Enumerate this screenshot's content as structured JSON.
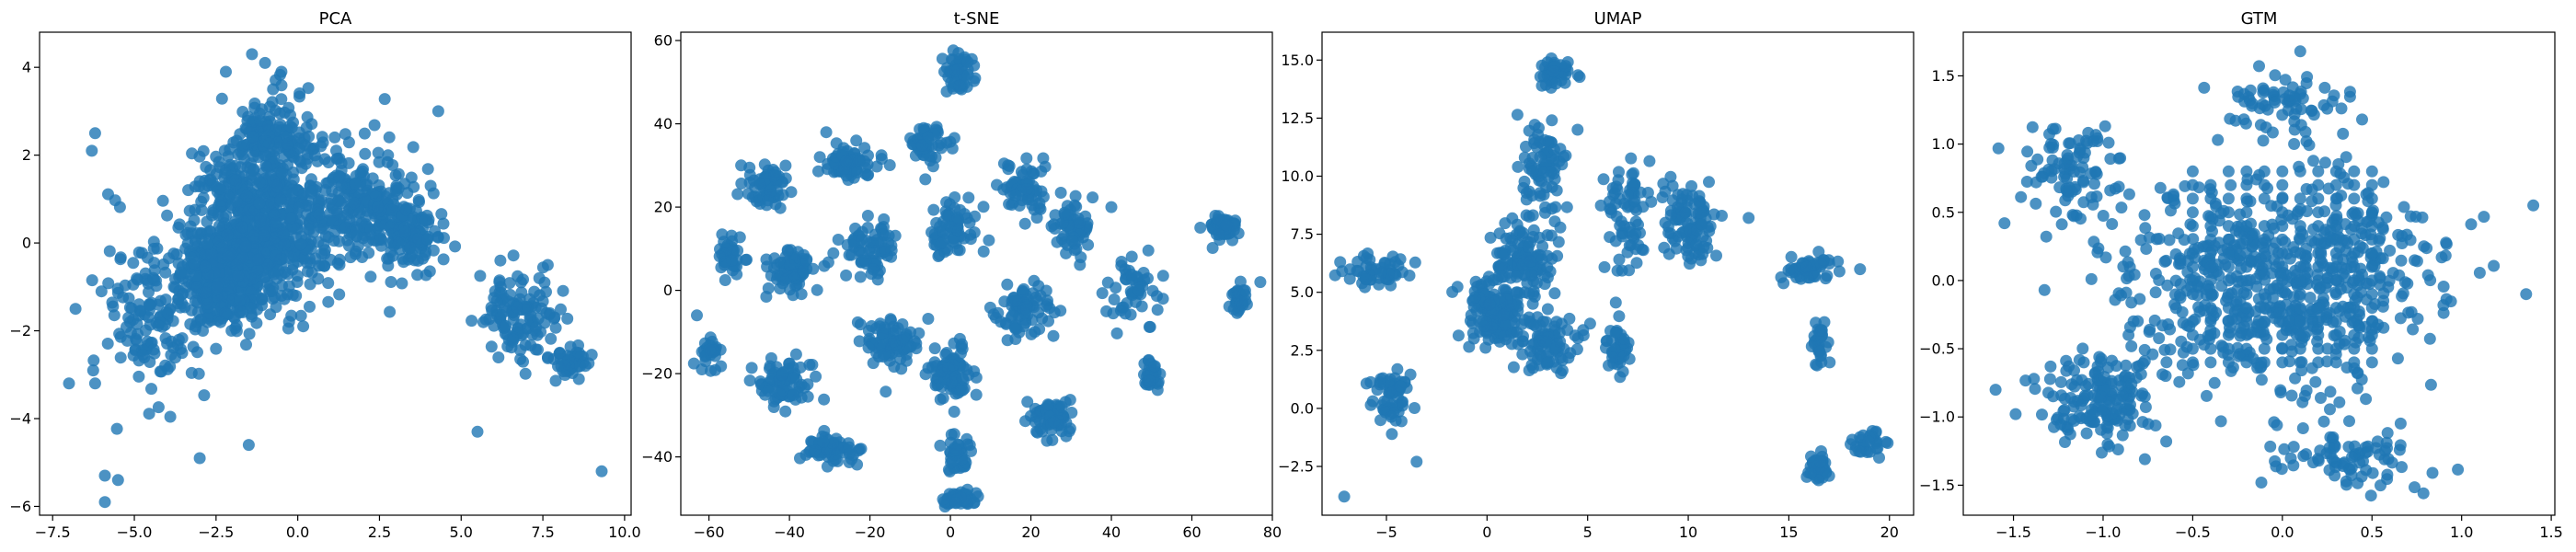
{
  "figure": {
    "background": "#ffffff",
    "point_color": "#1f77b4",
    "point_alpha": 0.8
  },
  "chart_data": [
    {
      "type": "scatter",
      "title": "PCA",
      "xlabel": "",
      "ylabel": "",
      "xlim": [
        -7.9,
        10.2
      ],
      "ylim": [
        -6.2,
        4.8
      ],
      "xticks": [
        -7.5,
        -5.0,
        -2.5,
        0.0,
        2.5,
        5.0,
        7.5,
        10.0
      ],
      "xtick_labels": [
        "−7.5",
        "−5.0",
        "−2.5",
        "0.0",
        "2.5",
        "5.0",
        "7.5",
        "10.0"
      ],
      "yticks": [
        -6,
        -4,
        -2,
        0,
        2,
        4
      ],
      "ytick_labels": [
        "−6",
        "−4",
        "−2",
        "0",
        "2",
        "4"
      ],
      "grid": false,
      "legend": "none",
      "clusters": [
        {
          "center": [
            -1.3,
            0.3
          ],
          "spread": [
            1.7,
            1.5
          ],
          "n": 700
        },
        {
          "center": [
            -2.4,
            -0.9
          ],
          "spread": [
            0.9,
            0.9
          ],
          "n": 250
        },
        {
          "center": [
            1.8,
            0.8
          ],
          "spread": [
            1.5,
            1.2
          ],
          "n": 250
        },
        {
          "center": [
            -0.8,
            2.3
          ],
          "spread": [
            1.0,
            0.9
          ],
          "n": 150
        },
        {
          "center": [
            3.4,
            0.2
          ],
          "spread": [
            0.8,
            0.7
          ],
          "n": 120
        },
        {
          "center": [
            6.8,
            -1.6
          ],
          "spread": [
            1.0,
            0.8
          ],
          "n": 120
        },
        {
          "center": [
            8.2,
            -2.7
          ],
          "spread": [
            0.6,
            0.3
          ],
          "n": 40
        },
        {
          "center": [
            -4.3,
            -1.8
          ],
          "spread": [
            1.3,
            1.6
          ],
          "n": 160
        }
      ],
      "points": [
        [
          -6.3,
          2.1
        ],
        [
          -6.2,
          2.5
        ],
        [
          -6.2,
          -3.2
        ],
        [
          -5.9,
          -5.9
        ],
        [
          -5.5,
          -5.4
        ],
        [
          -5.9,
          -5.3
        ],
        [
          -3.0,
          -4.9
        ],
        [
          -1.5,
          -4.6
        ],
        [
          9.3,
          -5.2
        ],
        [
          5.5,
          -4.3
        ],
        [
          8.6,
          -3.1
        ],
        [
          8.8,
          -2.8
        ],
        [
          -1.4,
          4.3
        ],
        [
          -1.0,
          4.1
        ],
        [
          -2.2,
          3.9
        ],
        [
          4.3,
          3.0
        ],
        [
          6.2,
          -0.4
        ],
        [
          -7.0,
          -3.2
        ],
        [
          -6.8,
          -1.5
        ],
        [
          -0.5,
          3.9
        ]
      ]
    },
    {
      "type": "scatter",
      "title": "t-SNE",
      "xlabel": "",
      "ylabel": "",
      "xlim": [
        -67,
        80
      ],
      "ylim": [
        -54,
        62
      ],
      "xticks": [
        -60,
        -40,
        -20,
        0,
        20,
        40,
        60,
        80
      ],
      "xtick_labels": [
        "−60",
        "−40",
        "−20",
        "0",
        "20",
        "40",
        "60",
        "80"
      ],
      "yticks": [
        -40,
        -20,
        0,
        20,
        40,
        60
      ],
      "ytick_labels": [
        "−40",
        "−20",
        "0",
        "20",
        "40",
        "60"
      ],
      "grid": false,
      "legend": "none",
      "clusters": [
        {
          "center": [
            -55,
            8
          ],
          "spread": [
            3,
            4
          ],
          "n": 40
        },
        {
          "center": [
            -60,
            -15
          ],
          "spread": [
            2,
            3
          ],
          "n": 30
        },
        {
          "center": [
            -45,
            25
          ],
          "spread": [
            5,
            4
          ],
          "n": 60
        },
        {
          "center": [
            -40,
            5
          ],
          "spread": [
            5,
            5
          ],
          "n": 70
        },
        {
          "center": [
            -40,
            -22
          ],
          "spread": [
            6,
            5
          ],
          "n": 80
        },
        {
          "center": [
            -30,
            -38
          ],
          "spread": [
            6,
            3
          ],
          "n": 60
        },
        {
          "center": [
            -25,
            30
          ],
          "spread": [
            6,
            4
          ],
          "n": 70
        },
        {
          "center": [
            -20,
            10
          ],
          "spread": [
            5,
            5
          ],
          "n": 70
        },
        {
          "center": [
            -15,
            -12
          ],
          "spread": [
            6,
            5
          ],
          "n": 80
        },
        {
          "center": [
            -5,
            35
          ],
          "spread": [
            4,
            4
          ],
          "n": 50
        },
        {
          "center": [
            2,
            52
          ],
          "spread": [
            3,
            4
          ],
          "n": 50
        },
        {
          "center": [
            0,
            15
          ],
          "spread": [
            5,
            6
          ],
          "n": 70
        },
        {
          "center": [
            0,
            -20
          ],
          "spread": [
            5,
            6
          ],
          "n": 80
        },
        {
          "center": [
            2,
            -40
          ],
          "spread": [
            3,
            4
          ],
          "n": 40
        },
        {
          "center": [
            2,
            -50
          ],
          "spread": [
            3,
            1.5
          ],
          "n": 50
        },
        {
          "center": [
            18,
            25
          ],
          "spread": [
            5,
            5
          ],
          "n": 60
        },
        {
          "center": [
            18,
            -5
          ],
          "spread": [
            6,
            6
          ],
          "n": 80
        },
        {
          "center": [
            25,
            -30
          ],
          "spread": [
            5,
            4
          ],
          "n": 60
        },
        {
          "center": [
            30,
            15
          ],
          "spread": [
            4,
            6
          ],
          "n": 60
        },
        {
          "center": [
            45,
            0
          ],
          "spread": [
            5,
            6
          ],
          "n": 50
        },
        {
          "center": [
            50,
            -20
          ],
          "spread": [
            2,
            3
          ],
          "n": 30
        },
        {
          "center": [
            68,
            15
          ],
          "spread": [
            3,
            3
          ],
          "n": 60
        },
        {
          "center": [
            72,
            -2
          ],
          "spread": [
            2,
            3
          ],
          "n": 30
        }
      ],
      "points": [
        [
          2,
          57
        ],
        [
          -63,
          -6
        ],
        [
          77,
          2
        ],
        [
          -52,
          30
        ],
        [
          40,
          20
        ]
      ]
    },
    {
      "type": "scatter",
      "title": "UMAP",
      "xlabel": "",
      "ylabel": "",
      "xlim": [
        -8.2,
        21.2
      ],
      "ylim": [
        -4.6,
        16.2
      ],
      "xticks": [
        -5,
        0,
        5,
        10,
        15,
        20
      ],
      "xtick_labels": [
        "−5",
        "0",
        "5",
        "10",
        "15",
        "20"
      ],
      "yticks": [
        -2.5,
        0.0,
        2.5,
        5.0,
        7.5,
        10.0,
        12.5,
        15.0
      ],
      "ytick_labels": [
        "−2.5",
        "0.0",
        "2.5",
        "5.0",
        "7.5",
        "10.0",
        "12.5",
        "15.0"
      ],
      "grid": false,
      "legend": "none",
      "clusters": [
        {
          "center": [
            -5.5,
            6.0
          ],
          "spread": [
            1.2,
            0.6
          ],
          "n": 50
        },
        {
          "center": [
            -4.8,
            0.5
          ],
          "spread": [
            0.8,
            1.0
          ],
          "n": 60
        },
        {
          "center": [
            0.5,
            4.2
          ],
          "spread": [
            1.5,
            1.2
          ],
          "n": 150
        },
        {
          "center": [
            1.8,
            6.5
          ],
          "spread": [
            1.2,
            1.5
          ],
          "n": 120
        },
        {
          "center": [
            3.0,
            2.8
          ],
          "spread": [
            1.2,
            1.0
          ],
          "n": 80
        },
        {
          "center": [
            2.8,
            10.5
          ],
          "spread": [
            1.0,
            1.5
          ],
          "n": 70
        },
        {
          "center": [
            3.5,
            14.5
          ],
          "spread": [
            0.7,
            0.6
          ],
          "n": 40
        },
        {
          "center": [
            6.5,
            2.8
          ],
          "spread": [
            0.5,
            1.2
          ],
          "n": 40
        },
        {
          "center": [
            7.0,
            8.5
          ],
          "spread": [
            1.0,
            1.8
          ],
          "n": 70
        },
        {
          "center": [
            10.0,
            8.0
          ],
          "spread": [
            1.2,
            1.5
          ],
          "n": 100
        },
        {
          "center": [
            16.0,
            6.0
          ],
          "spread": [
            1.2,
            0.5
          ],
          "n": 50
        },
        {
          "center": [
            16.5,
            3.0
          ],
          "spread": [
            0.4,
            1.0
          ],
          "n": 30
        },
        {
          "center": [
            16.5,
            -2.5
          ],
          "spread": [
            0.5,
            0.5
          ],
          "n": 40
        },
        {
          "center": [
            19.0,
            -1.5
          ],
          "spread": [
            0.8,
            0.5
          ],
          "n": 30
        }
      ],
      "points": [
        [
          -7.1,
          -3.8
        ],
        [
          -3.5,
          -2.3
        ],
        [
          13.0,
          8.2
        ],
        [
          4.5,
          12.0
        ],
        [
          -7.3,
          6.3
        ]
      ]
    },
    {
      "type": "scatter",
      "title": "GTM",
      "xlabel": "",
      "ylabel": "",
      "xlim": [
        -1.78,
        1.52
      ],
      "ylim": [
        -1.72,
        1.82
      ],
      "xticks": [
        -1.5,
        -1.0,
        -0.5,
        0.0,
        0.5,
        1.0,
        1.5
      ],
      "xtick_labels": [
        "−1.5",
        "−1.0",
        "−0.5",
        "0.0",
        "0.5",
        "1.0",
        "1.5"
      ],
      "yticks": [
        -1.5,
        -1.0,
        -0.5,
        0.0,
        0.5,
        1.0,
        1.5
      ],
      "ytick_labels": [
        "−1.5",
        "−1.0",
        "−0.5",
        "0.0",
        "0.5",
        "1.0",
        "1.5"
      ],
      "grid": false,
      "legend": "none",
      "grid_points": {
        "x": [
          -0.5,
          0.5
        ],
        "y": [
          -0.6,
          0.8
        ],
        "step": 0.1
      },
      "clusters": [
        {
          "center": [
            0.0,
            0.0
          ],
          "spread": [
            0.75,
            0.65
          ],
          "n": 650
        },
        {
          "center": [
            -1.0,
            -0.9
          ],
          "spread": [
            0.3,
            0.3
          ],
          "n": 160
        },
        {
          "center": [
            -1.2,
            0.8
          ],
          "spread": [
            0.25,
            0.3
          ],
          "n": 90
        },
        {
          "center": [
            0.4,
            -1.3
          ],
          "spread": [
            0.3,
            0.2
          ],
          "n": 80
        },
        {
          "center": [
            0.0,
            1.3
          ],
          "spread": [
            0.35,
            0.2
          ],
          "n": 70
        }
      ],
      "points": [
        [
          0.1,
          1.68
        ],
        [
          -1.6,
          -0.8
        ],
        [
          1.36,
          -0.1
        ],
        [
          1.4,
          0.55
        ],
        [
          -1.55,
          0.42
        ]
      ]
    }
  ]
}
